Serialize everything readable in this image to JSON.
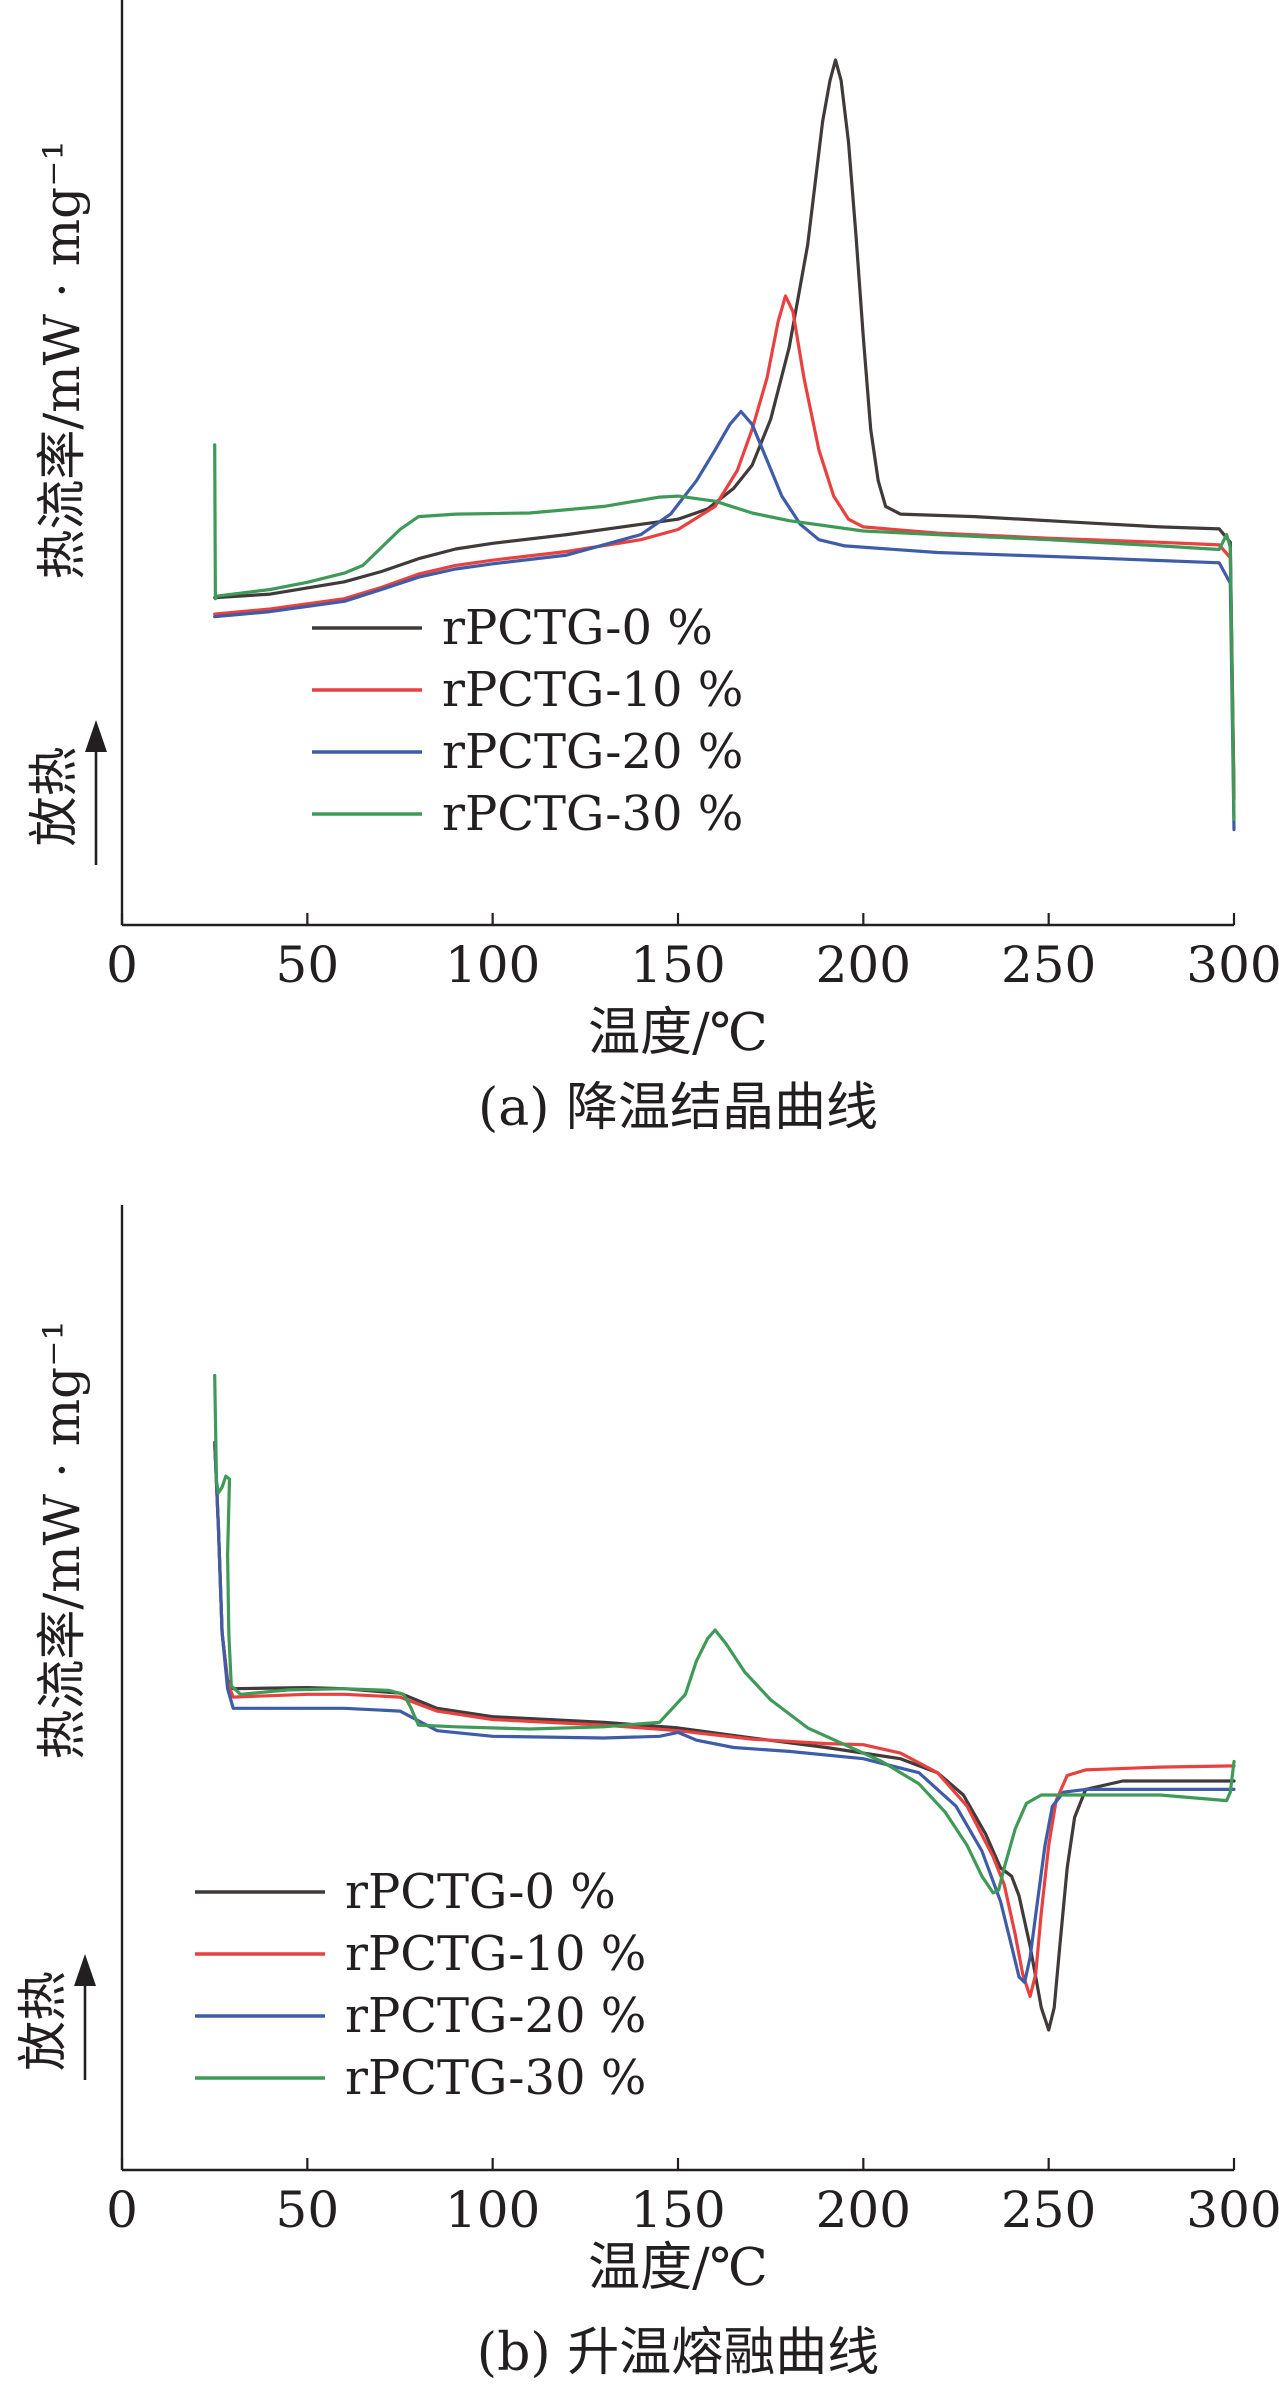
{
  "chart_data": [
    {
      "type": "line",
      "caption": "(a) 降温结晶曲线",
      "xlabel": "温度/℃",
      "ylabel": "热流率/mW · mg⁻¹",
      "exo_label": "放热",
      "xlim": [
        0,
        300
      ],
      "xticks": [
        0,
        50,
        100,
        150,
        200,
        250,
        300
      ],
      "yticks_shown": false,
      "grid": false,
      "legend_position": "lower-left",
      "series": [
        {
          "name": "rPCTG-0 %",
          "color": "#403a3a",
          "points": [
            [
              25,
              0.32
            ],
            [
              40,
              0.39
            ],
            [
              60,
              0.63
            ],
            [
              70,
              0.83
            ],
            [
              80,
              1.08
            ],
            [
              90,
              1.27
            ],
            [
              100,
              1.38
            ],
            [
              120,
              1.55
            ],
            [
              140,
              1.75
            ],
            [
              150,
              1.85
            ],
            [
              158,
              2.05
            ],
            [
              165,
              2.45
            ],
            [
              170,
              2.9
            ],
            [
              175,
              3.8
            ],
            [
              180,
              5.2
            ],
            [
              185,
              7.2
            ],
            [
              189,
              9.6
            ],
            [
              191,
              10.4
            ],
            [
              192.5,
              10.8
            ],
            [
              194,
              10.4
            ],
            [
              196,
              9.2
            ],
            [
              198,
              7.4
            ],
            [
              200,
              5.4
            ],
            [
              202,
              3.6
            ],
            [
              204,
              2.6
            ],
            [
              206,
              2.1
            ],
            [
              210,
              1.95
            ],
            [
              230,
              1.9
            ],
            [
              260,
              1.78
            ],
            [
              280,
              1.7
            ],
            [
              296,
              1.66
            ],
            [
              299,
              1.4
            ],
            [
              300,
              -3.5
            ]
          ]
        },
        {
          "name": "rPCTG-10 %",
          "color": "#e8413f",
          "points": [
            [
              25,
              0.0
            ],
            [
              40,
              0.1
            ],
            [
              60,
              0.3
            ],
            [
              70,
              0.52
            ],
            [
              80,
              0.78
            ],
            [
              90,
              0.95
            ],
            [
              100,
              1.05
            ],
            [
              120,
              1.22
            ],
            [
              140,
              1.45
            ],
            [
              150,
              1.65
            ],
            [
              160,
              2.1
            ],
            [
              166,
              2.8
            ],
            [
              170,
              3.6
            ],
            [
              174,
              4.6
            ],
            [
              177,
              5.7
            ],
            [
              179,
              6.2
            ],
            [
              181,
              5.9
            ],
            [
              184,
              4.6
            ],
            [
              188,
              3.2
            ],
            [
              192,
              2.3
            ],
            [
              196,
              1.85
            ],
            [
              200,
              1.7
            ],
            [
              220,
              1.58
            ],
            [
              250,
              1.48
            ],
            [
              280,
              1.4
            ],
            [
              296,
              1.35
            ],
            [
              299,
              1.1
            ],
            [
              300,
              -3.6
            ]
          ]
        },
        {
          "name": "rPCTG-20 %",
          "color": "#3e5ca8",
          "points": [
            [
              25,
              -0.05
            ],
            [
              40,
              0.05
            ],
            [
              60,
              0.25
            ],
            [
              70,
              0.48
            ],
            [
              80,
              0.72
            ],
            [
              90,
              0.88
            ],
            [
              100,
              0.98
            ],
            [
              120,
              1.15
            ],
            [
              140,
              1.55
            ],
            [
              148,
              1.95
            ],
            [
              155,
              2.6
            ],
            [
              160,
              3.2
            ],
            [
              164,
              3.7
            ],
            [
              167,
              3.95
            ],
            [
              170,
              3.7
            ],
            [
              174,
              3.0
            ],
            [
              178,
              2.3
            ],
            [
              183,
              1.75
            ],
            [
              188,
              1.45
            ],
            [
              195,
              1.33
            ],
            [
              220,
              1.2
            ],
            [
              260,
              1.1
            ],
            [
              296,
              1.0
            ],
            [
              299,
              0.6
            ],
            [
              300,
              -4.2
            ]
          ]
        },
        {
          "name": "rPCTG-30 %",
          "color": "#3f9a58",
          "points": [
            [
              25,
              3.3
            ],
            [
              25.2,
              0.3
            ],
            [
              25.4,
              0.35
            ],
            [
              40,
              0.48
            ],
            [
              50,
              0.62
            ],
            [
              60,
              0.8
            ],
            [
              65,
              0.95
            ],
            [
              70,
              1.3
            ],
            [
              75,
              1.65
            ],
            [
              80,
              1.9
            ],
            [
              90,
              1.95
            ],
            [
              110,
              1.97
            ],
            [
              130,
              2.1
            ],
            [
              145,
              2.28
            ],
            [
              150,
              2.3
            ],
            [
              160,
              2.2
            ],
            [
              170,
              1.97
            ],
            [
              180,
              1.82
            ],
            [
              200,
              1.62
            ],
            [
              220,
              1.55
            ],
            [
              250,
              1.45
            ],
            [
              280,
              1.33
            ],
            [
              296,
              1.26
            ],
            [
              298,
              1.55
            ],
            [
              299,
              1.3
            ],
            [
              300,
              -4.0
            ]
          ]
        }
      ]
    },
    {
      "type": "line",
      "caption": "(b) 升温熔融曲线",
      "xlabel": "温度/℃",
      "ylabel": "热流率/mW · mg⁻¹",
      "exo_label": "放热",
      "xlim": [
        0,
        300
      ],
      "xticks": [
        0,
        50,
        100,
        150,
        200,
        250,
        300
      ],
      "yticks_shown": false,
      "grid": false,
      "legend_position": "lower-left",
      "series": [
        {
          "name": "rPCTG-0 %",
          "color": "#403a3a",
          "points": [
            [
              25,
              6.0
            ],
            [
              26,
              4.5
            ],
            [
              27,
              2.6
            ],
            [
              28.5,
              1.75
            ],
            [
              30,
              1.6
            ],
            [
              50,
              1.62
            ],
            [
              60,
              1.6
            ],
            [
              75,
              1.52
            ],
            [
              85,
              1.25
            ],
            [
              100,
              1.1
            ],
            [
              130,
              1.0
            ],
            [
              150,
              0.9
            ],
            [
              170,
              0.72
            ],
            [
              190,
              0.55
            ],
            [
              210,
              0.35
            ],
            [
              220,
              0.1
            ],
            [
              227,
              -0.3
            ],
            [
              233,
              -1.0
            ],
            [
              237,
              -1.6
            ],
            [
              240,
              -1.75
            ],
            [
              242,
              -2.1
            ],
            [
              245,
              -3.0
            ],
            [
              248,
              -4.1
            ],
            [
              250,
              -4.5
            ],
            [
              251.5,
              -4.1
            ],
            [
              253,
              -3.0
            ],
            [
              255,
              -1.6
            ],
            [
              257,
              -0.7
            ],
            [
              260,
              -0.2
            ],
            [
              270,
              -0.05
            ],
            [
              290,
              -0.05
            ],
            [
              300,
              -0.05
            ]
          ]
        },
        {
          "name": "rPCTG-10 %",
          "color": "#e8413f",
          "points": [
            [
              25,
              6.0
            ],
            [
              26,
              4.5
            ],
            [
              27,
              2.6
            ],
            [
              28.5,
              1.7
            ],
            [
              30,
              1.45
            ],
            [
              50,
              1.5
            ],
            [
              60,
              1.5
            ],
            [
              75,
              1.45
            ],
            [
              85,
              1.2
            ],
            [
              100,
              1.05
            ],
            [
              130,
              0.95
            ],
            [
              150,
              0.85
            ],
            [
              170,
              0.7
            ],
            [
              190,
              0.62
            ],
            [
              200,
              0.6
            ],
            [
              210,
              0.45
            ],
            [
              220,
              0.1
            ],
            [
              228,
              -0.5
            ],
            [
              235,
              -1.4
            ],
            [
              238,
              -1.9
            ],
            [
              241,
              -2.8
            ],
            [
              243,
              -3.5
            ],
            [
              245,
              -3.9
            ],
            [
              246.5,
              -3.5
            ],
            [
              248,
              -2.4
            ],
            [
              250,
              -1.2
            ],
            [
              252,
              -0.4
            ],
            [
              255,
              0.05
            ],
            [
              260,
              0.15
            ],
            [
              280,
              0.2
            ],
            [
              300,
              0.22
            ]
          ]
        },
        {
          "name": "rPCTG-20 %",
          "color": "#3e5ca8",
          "points": [
            [
              25,
              6.0
            ],
            [
              26,
              4.5
            ],
            [
              27,
              2.6
            ],
            [
              28.5,
              1.6
            ],
            [
              30,
              1.25
            ],
            [
              50,
              1.25
            ],
            [
              60,
              1.25
            ],
            [
              75,
              1.2
            ],
            [
              85,
              0.85
            ],
            [
              100,
              0.75
            ],
            [
              130,
              0.72
            ],
            [
              145,
              0.75
            ],
            [
              150,
              0.82
            ],
            [
              155,
              0.68
            ],
            [
              165,
              0.55
            ],
            [
              180,
              0.48
            ],
            [
              200,
              0.35
            ],
            [
              215,
              0.1
            ],
            [
              225,
              -0.5
            ],
            [
              232,
              -1.3
            ],
            [
              237,
              -2.2
            ],
            [
              240,
              -3.0
            ],
            [
              242,
              -3.55
            ],
            [
              243.5,
              -3.65
            ],
            [
              245,
              -3.2
            ],
            [
              247,
              -2.2
            ],
            [
              249,
              -1.2
            ],
            [
              251,
              -0.5
            ],
            [
              254,
              -0.25
            ],
            [
              260,
              -0.2
            ],
            [
              280,
              -0.2
            ],
            [
              300,
              -0.2
            ]
          ]
        },
        {
          "name": "rPCTG-30 %",
          "color": "#3f9a58",
          "points": [
            [
              25,
              7.2
            ],
            [
              25.5,
              5.3
            ],
            [
              26,
              5.1
            ],
            [
              27,
              5.2
            ],
            [
              28,
              5.4
            ],
            [
              29,
              5.35
            ],
            [
              28.5,
              4.0
            ],
            [
              28.8,
              2.6
            ],
            [
              29.5,
              1.65
            ],
            [
              32,
              1.5
            ],
            [
              45,
              1.58
            ],
            [
              60,
              1.6
            ],
            [
              72,
              1.57
            ],
            [
              76,
              1.5
            ],
            [
              78,
              1.25
            ],
            [
              80,
              0.95
            ],
            [
              90,
              0.92
            ],
            [
              110,
              0.88
            ],
            [
              130,
              0.92
            ],
            [
              145,
              1.0
            ],
            [
              152,
              1.5
            ],
            [
              155,
              2.1
            ],
            [
              158,
              2.5
            ],
            [
              160,
              2.65
            ],
            [
              163,
              2.4
            ],
            [
              168,
              1.9
            ],
            [
              175,
              1.4
            ],
            [
              185,
              0.9
            ],
            [
              195,
              0.6
            ],
            [
              205,
              0.3
            ],
            [
              215,
              -0.1
            ],
            [
              222,
              -0.6
            ],
            [
              228,
              -1.2
            ],
            [
              232,
              -1.75
            ],
            [
              235,
              -2.05
            ],
            [
              236.5,
              -2.0
            ],
            [
              238,
              -1.6
            ],
            [
              241,
              -0.9
            ],
            [
              244,
              -0.45
            ],
            [
              248,
              -0.3
            ],
            [
              260,
              -0.3
            ],
            [
              280,
              -0.3
            ],
            [
              298,
              -0.4
            ],
            [
              299,
              -0.25
            ],
            [
              300,
              0.3
            ]
          ]
        }
      ]
    }
  ]
}
